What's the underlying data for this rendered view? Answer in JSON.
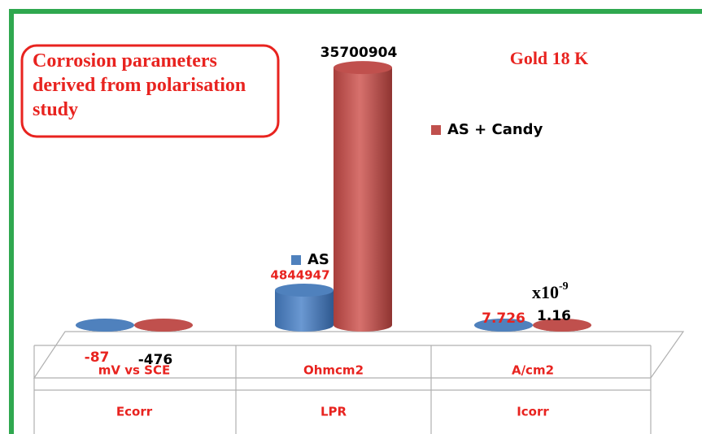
{
  "chart_data": {
    "type": "cylinder-bar",
    "title": "Corrosion parameters derived from polarisation study",
    "subtitle": "Gold 18 K",
    "annotation": "x10",
    "annotation_exponent": "-9",
    "categories": [
      "Ecorr",
      "LPR",
      "Icorr"
    ],
    "units": [
      "mV vs SCE",
      "Ohmcm2",
      "A/cm2"
    ],
    "ylim": [
      0,
      40000000
    ],
    "series": [
      {
        "name": "AS",
        "color": "#4f81bd",
        "label_color": "#e8231f",
        "values": [
          -87,
          4844947,
          7.726
        ]
      },
      {
        "name": "AS + Candy",
        "color": "#c0504d",
        "label_color": "#000000",
        "values": [
          -476,
          35700904,
          1.16
        ]
      }
    ]
  }
}
